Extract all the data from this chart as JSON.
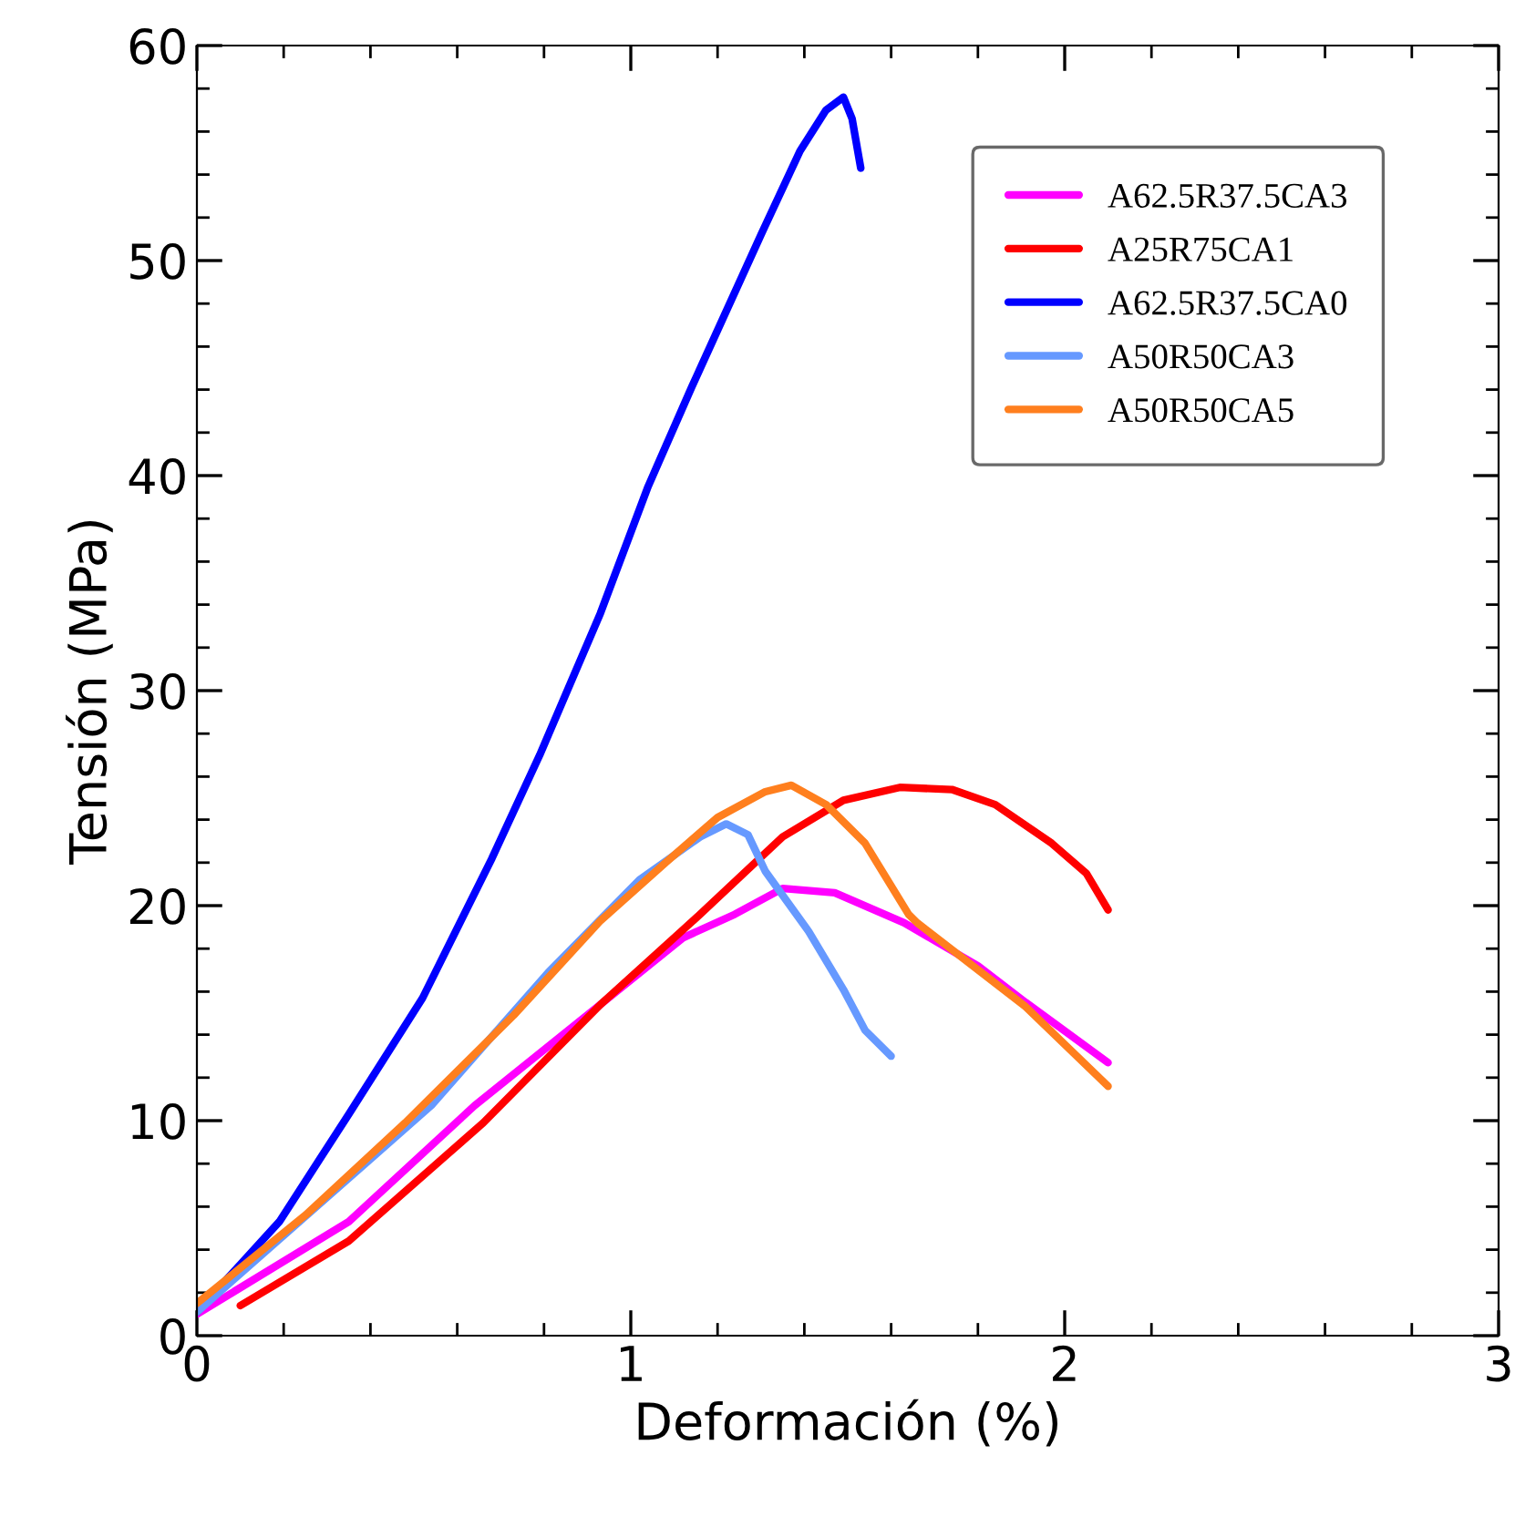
{
  "chart_data": {
    "type": "line",
    "xlabel": "Deformación (%)",
    "ylabel": "Tensión (MPa)",
    "xlim": [
      0,
      3
    ],
    "ylim": [
      0,
      60
    ],
    "xticks": [
      0,
      1,
      2,
      3
    ],
    "yticks": [
      0,
      10,
      20,
      30,
      40,
      50,
      60
    ],
    "grid": false,
    "legend": "top right",
    "marker": "none",
    "line_style": "solid",
    "series": [
      {
        "name": "A62.5R37.5CA3",
        "color": "#ff00ff",
        "x": [
          0,
          0.35,
          0.64,
          0.93,
          1.12,
          1.24,
          1.35,
          1.47,
          1.63,
          1.8,
          1.91,
          2.1
        ],
        "values": [
          1.0,
          5.3,
          10.7,
          15.4,
          18.5,
          19.6,
          20.8,
          20.6,
          19.2,
          17.2,
          15.5,
          12.7
        ]
      },
      {
        "name": "A25R75CA1",
        "color": "#ff0000",
        "x": [
          0.1,
          0.35,
          0.66,
          0.93,
          1.16,
          1.35,
          1.49,
          1.62,
          1.74,
          1.84,
          1.97,
          2.05,
          2.1
        ],
        "values": [
          1.4,
          4.4,
          9.9,
          15.4,
          19.6,
          23.2,
          24.9,
          25.5,
          25.4,
          24.7,
          22.9,
          21.5,
          19.8
        ]
      },
      {
        "name": "A62.5R37.5CA0",
        "color": "#0000ff",
        "x": [
          0,
          0.19,
          0.35,
          0.52,
          0.68,
          0.79,
          0.93,
          1.04,
          1.14,
          1.3,
          1.39,
          1.45,
          1.49,
          1.51,
          1.53
        ],
        "values": [
          1.1,
          5.3,
          10.3,
          15.7,
          22.2,
          27.0,
          33.6,
          39.5,
          44.1,
          51.2,
          55.1,
          57.0,
          57.6,
          56.6,
          54.3
        ]
      },
      {
        "name": "A50R50CA3",
        "color": "#6699ff",
        "x": [
          0,
          0.54,
          0.81,
          1.02,
          1.16,
          1.22,
          1.27,
          1.31,
          1.41,
          1.49,
          1.54,
          1.6
        ],
        "values": [
          1.1,
          10.7,
          16.9,
          21.2,
          23.2,
          23.8,
          23.3,
          21.6,
          18.8,
          16.1,
          14.2,
          13.0
        ]
      },
      {
        "name": "A50R50CA5",
        "color": "#ff7f1e",
        "x": [
          0,
          0.25,
          0.48,
          0.73,
          0.93,
          1.08,
          1.2,
          1.31,
          1.37,
          1.45,
          1.54,
          1.64,
          1.66,
          1.91,
          2.1
        ],
        "values": [
          1.5,
          5.6,
          9.9,
          14.9,
          19.3,
          22.0,
          24.1,
          25.3,
          25.6,
          24.7,
          22.9,
          19.6,
          19.2,
          15.3,
          11.6
        ]
      }
    ]
  }
}
